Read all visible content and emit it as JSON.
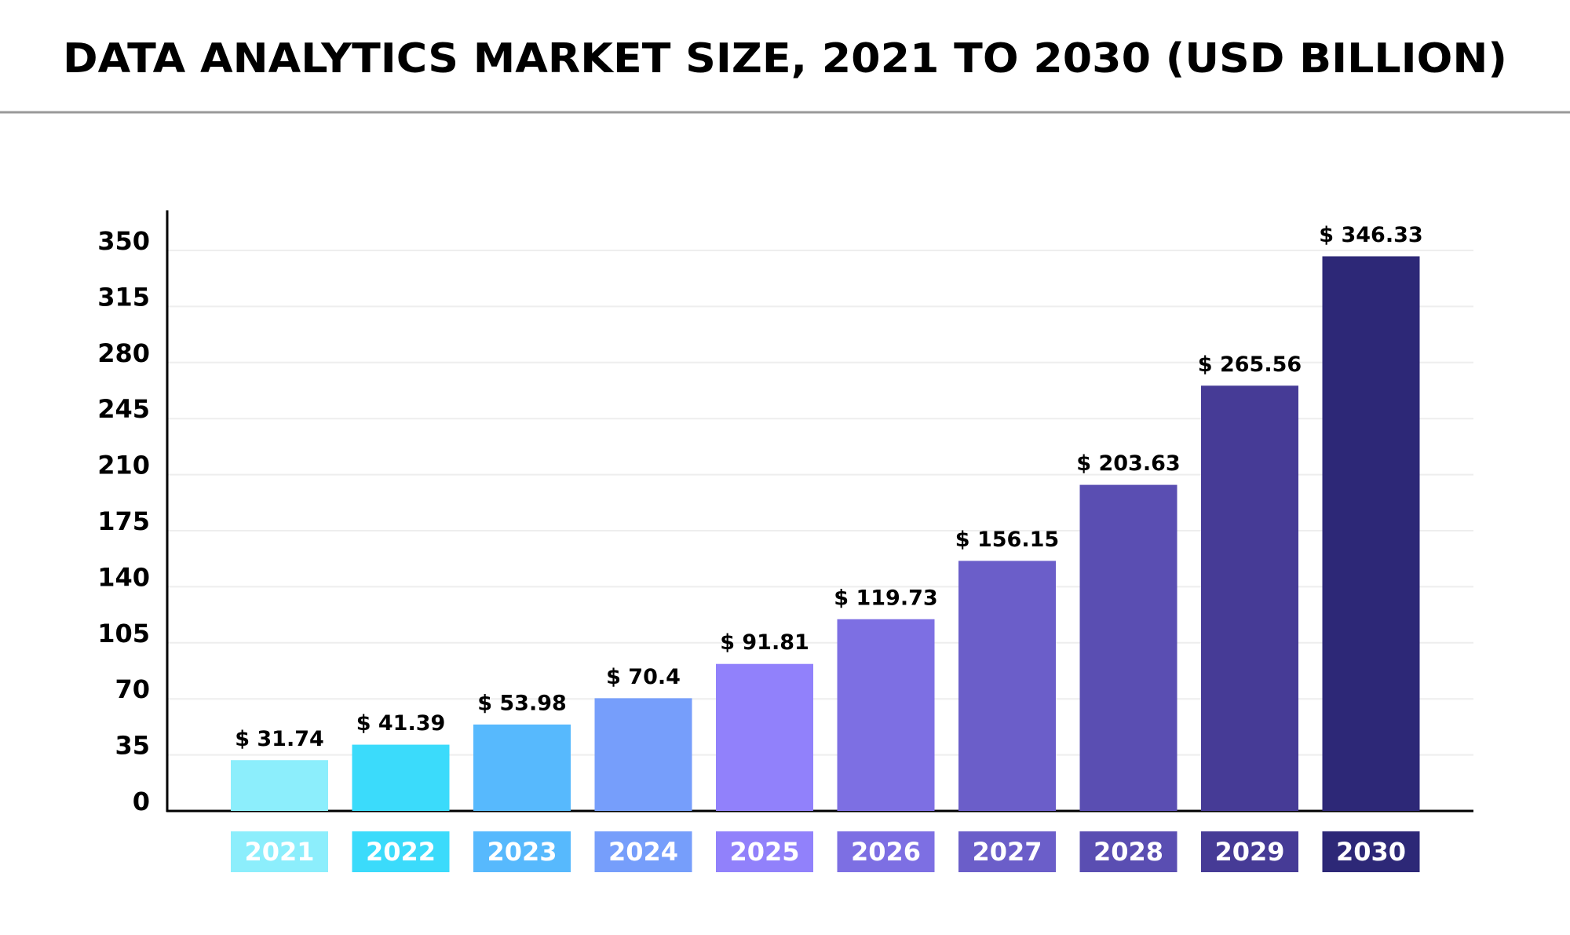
{
  "chart_data": {
    "type": "bar",
    "title": "DATA ANALYTICS MARKET SIZE, 2021 TO 2030 (USD BILLION)",
    "categories": [
      "2021",
      "2022",
      "2023",
      "2024",
      "2025",
      "2026",
      "2027",
      "2028",
      "2029",
      "2030"
    ],
    "values": [
      31.74,
      41.39,
      53.98,
      70.4,
      91.81,
      119.73,
      156.15,
      203.63,
      265.56,
      346.33
    ],
    "value_labels": [
      "$ 31.74",
      "$ 41.39",
      "$ 53.98",
      "$ 70.4",
      "$ 91.81",
      "$ 119.73",
      "$ 156.15",
      "$ 203.63",
      "$ 265.56",
      "$ 346.33"
    ],
    "colors": [
      "#8ceefc",
      "#3bdbfb",
      "#57b9fd",
      "#769efb",
      "#9181fb",
      "#7d6fe3",
      "#6b5ec9",
      "#5a4eb2",
      "#463b96",
      "#2d2877"
    ],
    "ylim": [
      0,
      375
    ],
    "yticks": [
      0,
      35,
      70,
      105,
      140,
      175,
      210,
      245,
      280,
      315,
      350
    ],
    "grid": true
  }
}
